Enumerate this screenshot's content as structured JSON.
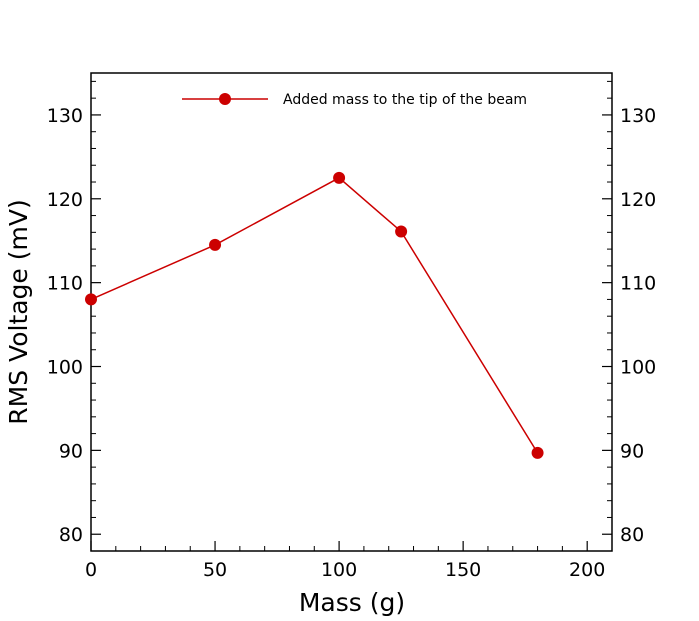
{
  "chart_data": {
    "type": "line",
    "xlabel": "Mass (g)",
    "ylabel": "RMS Voltage (mV)",
    "xlim": [
      0,
      210
    ],
    "ylim": [
      78,
      135
    ],
    "x_ticks": [
      0,
      50,
      100,
      150,
      200
    ],
    "y_ticks": [
      80,
      90,
      100,
      110,
      120,
      130
    ],
    "x_minor_step": 10,
    "y_minor_step": 2,
    "mirror_y_axis": true,
    "grid": false,
    "legend_position": "top-center",
    "series": [
      {
        "name": "Added mass to the tip of the beam",
        "color": "#cc0000",
        "marker": "circle",
        "x": [
          0,
          50,
          100,
          125,
          180
        ],
        "y": [
          108.0,
          114.5,
          122.5,
          116.1,
          89.7
        ]
      }
    ]
  }
}
